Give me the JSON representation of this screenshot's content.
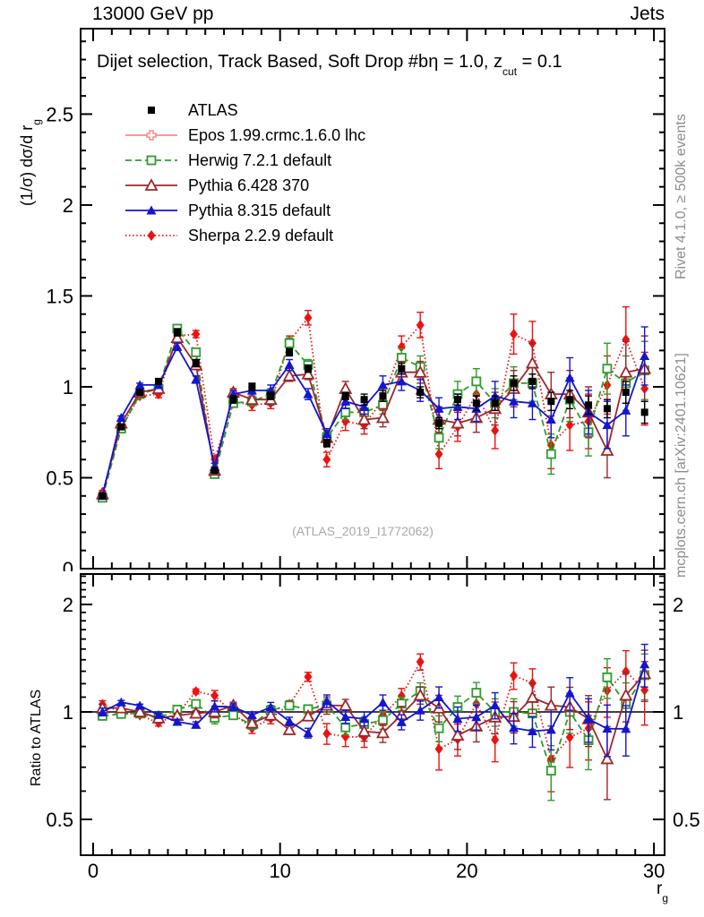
{
  "header": {
    "left": "13000 GeV pp",
    "right": "Jets"
  },
  "plot": {
    "title_prefix": "Dijet selection, Track Based, Soft Drop #b",
    "title_eta": "η = 1.0, z",
    "title_sub": "cut",
    "title_end": " = 0.1",
    "watermark": "(ATLAS_2019_I1772062)",
    "side_note_top": "Rivet 4.1.0, ≥ 500k events",
    "side_note_bottom": "mcplots.cern.ch [arXiv:2401.10621]",
    "y_title_main": "(1/σ) dσ/d r",
    "y_title_main_sub": "g",
    "y_title_ratio": "Ratio to ATLAS",
    "x_title": "r",
    "x_title_sub": "g"
  },
  "chart_data": {
    "type": "line",
    "title": "Dijet selection, Track Based, Soft Drop #b η = 1.0, z_cut = 0.1",
    "xlabel": "r_g",
    "ylabel_main": "(1/σ) dσ/d r_g",
    "ylabel_ratio": "Ratio to ATLAS",
    "main_axis": {
      "ylim": [
        0,
        2.97
      ],
      "yticks": [
        0,
        0.5,
        1,
        1.5,
        2,
        2.5
      ],
      "xlim": [
        -0.67,
        30.57
      ],
      "xticks": [
        0,
        10,
        20,
        30
      ],
      "minor_x_step": 1,
      "minor_y_step": 0.1,
      "grid": false
    },
    "ratio_axis": {
      "scale": "log",
      "ylim": [
        0.4,
        2.45
      ],
      "yticks": [
        0.5,
        1,
        2
      ],
      "definition": "series / ATLAS"
    },
    "legend_position": "top-left",
    "x": [
      0.5,
      1.5,
      2.5,
      3.5,
      4.5,
      5.5,
      6.5,
      7.5,
      8.5,
      9.5,
      10.5,
      11.5,
      12.5,
      13.5,
      14.5,
      15.5,
      16.5,
      17.5,
      18.5,
      19.5,
      20.5,
      21.5,
      22.5,
      23.5,
      24.5,
      25.5,
      26.5,
      27.5,
      28.5,
      29.5
    ],
    "series": [
      {
        "name": "ATLAS",
        "color": "#000000",
        "marker": "filled-square",
        "line": "none",
        "values": [
          0.4,
          0.78,
          0.97,
          1.03,
          1.3,
          1.13,
          0.54,
          0.93,
          1.0,
          0.95,
          1.19,
          1.1,
          0.69,
          0.95,
          0.93,
          0.95,
          1.1,
          0.97,
          0.8,
          0.93,
          0.91,
          0.91,
          1.02,
          1.03,
          0.92,
          0.93,
          0.9,
          0.88,
          0.97,
          0.86
        ],
        "errors": [
          0.01,
          0.01,
          0.01,
          0.01,
          0.02,
          0.02,
          0.01,
          0.02,
          0.02,
          0.02,
          0.02,
          0.02,
          0.02,
          0.02,
          0.03,
          0.03,
          0.03,
          0.03,
          0.03,
          0.03,
          0.04,
          0.04,
          0.04,
          0.04,
          0.05,
          0.05,
          0.05,
          0.05,
          0.06,
          0.06
        ]
      },
      {
        "name": "Epos 1.99.crmc.1.6.0 lhc",
        "color": "#f28c8c",
        "marker": "open-cross",
        "line": "solid",
        "values": [],
        "errors": []
      },
      {
        "name": "Herwig 7.2.1 default",
        "color": "#2e9b2e",
        "marker": "open-square",
        "line": "dashed",
        "values": [
          0.39,
          0.77,
          0.96,
          0.99,
          1.32,
          1.19,
          0.52,
          0.91,
          0.92,
          0.96,
          1.24,
          1.12,
          0.72,
          0.86,
          0.86,
          0.9,
          1.16,
          1.11,
          0.72,
          0.96,
          1.03,
          0.91,
          1.02,
          1.02,
          0.63,
          0.93,
          0.75,
          1.1,
          1.02,
          1.09
        ],
        "errors": [
          0.01,
          0.01,
          0.01,
          0.01,
          0.02,
          0.02,
          0.02,
          0.02,
          0.02,
          0.03,
          0.03,
          0.03,
          0.03,
          0.04,
          0.04,
          0.05,
          0.05,
          0.06,
          0.06,
          0.07,
          0.07,
          0.08,
          0.09,
          0.1,
          0.11,
          0.12,
          0.13,
          0.14,
          0.15,
          0.16
        ]
      },
      {
        "name": "Pythia 6.428 370",
        "color": "#9b282d",
        "marker": "open-triangle",
        "line": "solid",
        "values": [
          0.41,
          0.8,
          0.97,
          0.99,
          1.27,
          1.12,
          0.54,
          0.97,
          0.93,
          0.93,
          1.06,
          1.07,
          0.72,
          0.99,
          0.82,
          0.83,
          1.08,
          1.08,
          0.82,
          0.8,
          0.83,
          0.88,
          0.99,
          1.13,
          0.96,
          0.96,
          0.86,
          0.65,
          1.08,
          1.1
        ],
        "errors": [
          0.01,
          0.01,
          0.01,
          0.01,
          0.02,
          0.02,
          0.02,
          0.02,
          0.02,
          0.03,
          0.03,
          0.03,
          0.04,
          0.04,
          0.05,
          0.05,
          0.06,
          0.06,
          0.07,
          0.07,
          0.08,
          0.09,
          0.1,
          0.11,
          0.12,
          0.13,
          0.14,
          0.15,
          0.17,
          0.18
        ]
      },
      {
        "name": "Pythia 8.315 default",
        "color": "#1515d0",
        "marker": "filled-triangle",
        "line": "solid",
        "values": [
          0.4,
          0.83,
          1.01,
          1.01,
          1.22,
          1.04,
          0.56,
          0.96,
          0.98,
          0.98,
          1.12,
          0.96,
          0.74,
          0.92,
          0.89,
          1.01,
          1.03,
          0.98,
          0.88,
          0.89,
          0.88,
          0.95,
          0.92,
          0.91,
          0.82,
          1.05,
          0.86,
          0.79,
          0.87,
          1.17
        ],
        "errors": [
          0.01,
          0.01,
          0.01,
          0.01,
          0.02,
          0.02,
          0.02,
          0.02,
          0.02,
          0.03,
          0.03,
          0.03,
          0.03,
          0.04,
          0.04,
          0.05,
          0.05,
          0.06,
          0.06,
          0.07,
          0.07,
          0.08,
          0.09,
          0.09,
          0.1,
          0.11,
          0.12,
          0.13,
          0.14,
          0.16
        ]
      },
      {
        "name": "Sherpa 2.2.9 default",
        "color": "#ee1111",
        "marker": "filled-diamond",
        "line": "dotted",
        "values": [
          0.42,
          0.78,
          0.95,
          0.96,
          1.28,
          1.29,
          0.6,
          0.92,
          0.9,
          0.91,
          1.25,
          1.38,
          0.6,
          0.81,
          0.79,
          0.93,
          1.22,
          1.34,
          0.63,
          0.78,
          0.96,
          0.76,
          1.29,
          1.24,
          0.68,
          0.79,
          0.81,
          1.01,
          1.26,
          0.99
        ],
        "errors": [
          0.01,
          0.01,
          0.01,
          0.02,
          0.02,
          0.02,
          0.02,
          0.02,
          0.03,
          0.03,
          0.03,
          0.04,
          0.04,
          0.05,
          0.05,
          0.06,
          0.06,
          0.07,
          0.08,
          0.08,
          0.09,
          0.1,
          0.11,
          0.12,
          0.13,
          0.14,
          0.15,
          0.16,
          0.18,
          0.2
        ]
      }
    ]
  }
}
